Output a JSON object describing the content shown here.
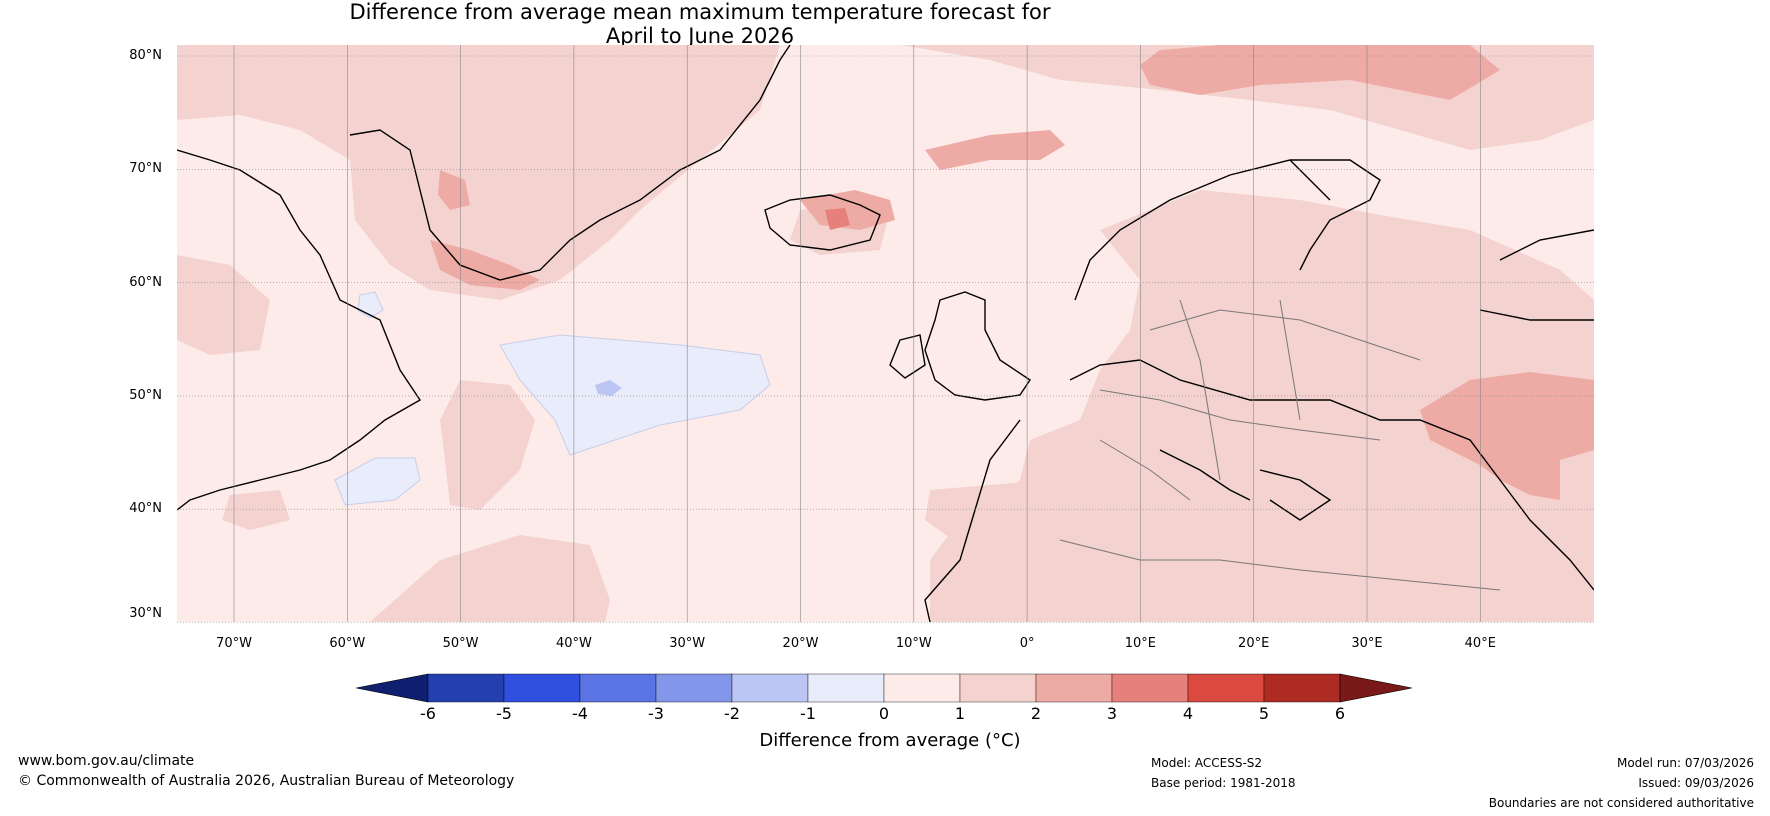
{
  "title": {
    "line1": "Difference from average mean maximum temperature forecast for",
    "line2": "April to June 2026"
  },
  "axes": {
    "lat_labels": [
      "80°N",
      "70°N",
      "60°N",
      "50°N",
      "40°N",
      "30°N"
    ],
    "lon_labels": [
      "70°W",
      "60°W",
      "50°W",
      "40°W",
      "30°W",
      "20°W",
      "10°W",
      "0°",
      "10°E",
      "20°E",
      "30°E",
      "40°E"
    ]
  },
  "colorbar": {
    "ticks": [
      "-6",
      "-5",
      "-4",
      "-3",
      "-2",
      "-1",
      "0",
      "1",
      "2",
      "3",
      "4",
      "5",
      "6"
    ],
    "label": "Difference from average (°C)",
    "colors": [
      "#101f70",
      "#2440b0",
      "#3050e0",
      "#5a74e6",
      "#8296ea",
      "#bcc6f4",
      "#e8ecfb",
      "#fcebe8",
      "#f4d2cf",
      "#eeaaa4",
      "#e5807a",
      "#db4a3e",
      "#ae2b24",
      "#7a1a18"
    ]
  },
  "footer": {
    "website": "www.bom.gov.au/climate",
    "copyright": "© Commonwealth of Australia 2026, Australian Bureau of Meteorology",
    "model": "Model: ACCESS-S2",
    "base_period": "Base period: 1981-2018",
    "model_run": "Model run: 07/03/2026",
    "issued": "Issued: 09/03/2026",
    "disclaimer": "Boundaries are not considered authoritative"
  }
}
